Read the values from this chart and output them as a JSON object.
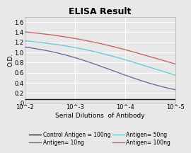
{
  "title": "ELISA Result",
  "ylabel": "O.D.",
  "xlabel": "Serial Dilutions  of Antibody",
  "x_ticks": [
    0.01,
    0.001,
    0.0001,
    1e-05
  ],
  "x_tick_labels": [
    "10^-2",
    "10^-3",
    "10^-4",
    "10^-5"
  ],
  "ylim": [
    0,
    1.7
  ],
  "yticks": [
    0,
    0.2,
    0.4,
    0.6,
    0.8,
    1.0,
    1.2,
    1.4,
    1.6
  ],
  "series": [
    {
      "label": "Control Antigen = 100ng",
      "color": "#1a1a1a",
      "lw": 1.0
    },
    {
      "label": "Antigen= 10ng",
      "color": "#6e6e9e",
      "lw": 1.0
    },
    {
      "label": "Antigen= 50ng",
      "color": "#66ccdd",
      "lw": 1.0
    },
    {
      "label": "Antigen= 100ng",
      "color": "#cc6666",
      "lw": 1.0
    }
  ],
  "background_color": "#e8e8e8",
  "grid_color": "#ffffff",
  "title_fontsize": 9,
  "label_fontsize": 6.5,
  "tick_fontsize": 6,
  "legend_fontsize": 5.5
}
